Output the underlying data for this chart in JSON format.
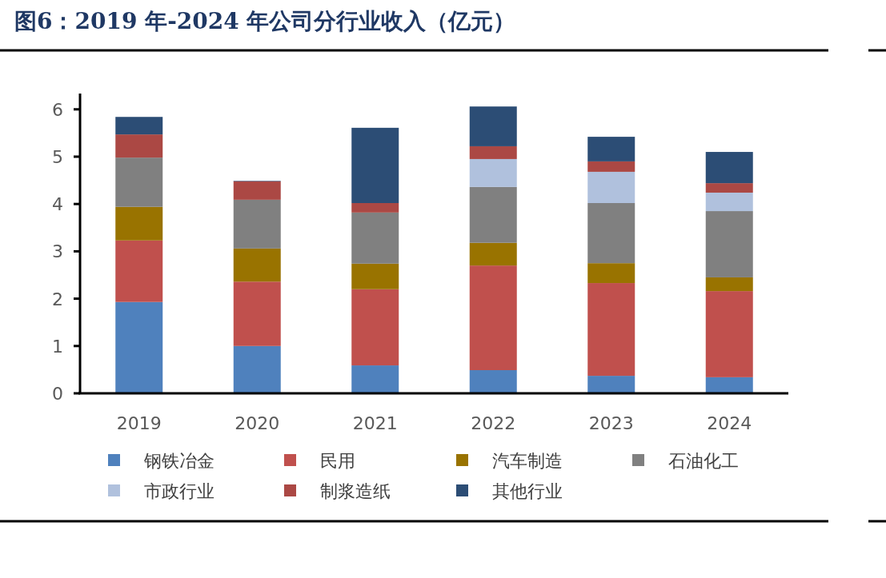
{
  "chart_data": {
    "type": "bar",
    "stacked": true,
    "title": "图6：2019 年-2024 年公司分行业收入（亿元）",
    "categories": [
      "2019",
      "2020",
      "2021",
      "2022",
      "2023",
      "2024"
    ],
    "series": [
      {
        "name": "钢铁冶金",
        "color": "#4f81bd",
        "values": [
          1.93,
          1.0,
          0.59,
          0.49,
          0.37,
          0.34
        ]
      },
      {
        "name": "民用",
        "color": "#c0504d",
        "values": [
          1.3,
          1.36,
          1.61,
          2.21,
          1.96,
          1.82
        ]
      },
      {
        "name": "汽车制造",
        "color": "#997300",
        "values": [
          0.71,
          0.7,
          0.54,
          0.48,
          0.42,
          0.29
        ]
      },
      {
        "name": "石油化工",
        "color": "#808080",
        "values": [
          1.04,
          1.03,
          1.08,
          1.18,
          1.27,
          1.4
        ]
      },
      {
        "name": "市政行业",
        "color": "#b0c1dd",
        "values": [
          0,
          0,
          0,
          0.59,
          0.66,
          0.39
        ]
      },
      {
        "name": "制浆造纸",
        "color": "#ab4844",
        "values": [
          0.49,
          0.39,
          0.2,
          0.27,
          0.22,
          0.2
        ]
      },
      {
        "name": "其他行业",
        "color": "#2c4d75",
        "values": [
          0.37,
          0.01,
          1.59,
          0.84,
          0.52,
          0.66
        ]
      }
    ],
    "ylim": [
      0,
      6.3
    ],
    "yticks": [
      0,
      1,
      2,
      3,
      4,
      5,
      6
    ],
    "legend": "bottom"
  }
}
